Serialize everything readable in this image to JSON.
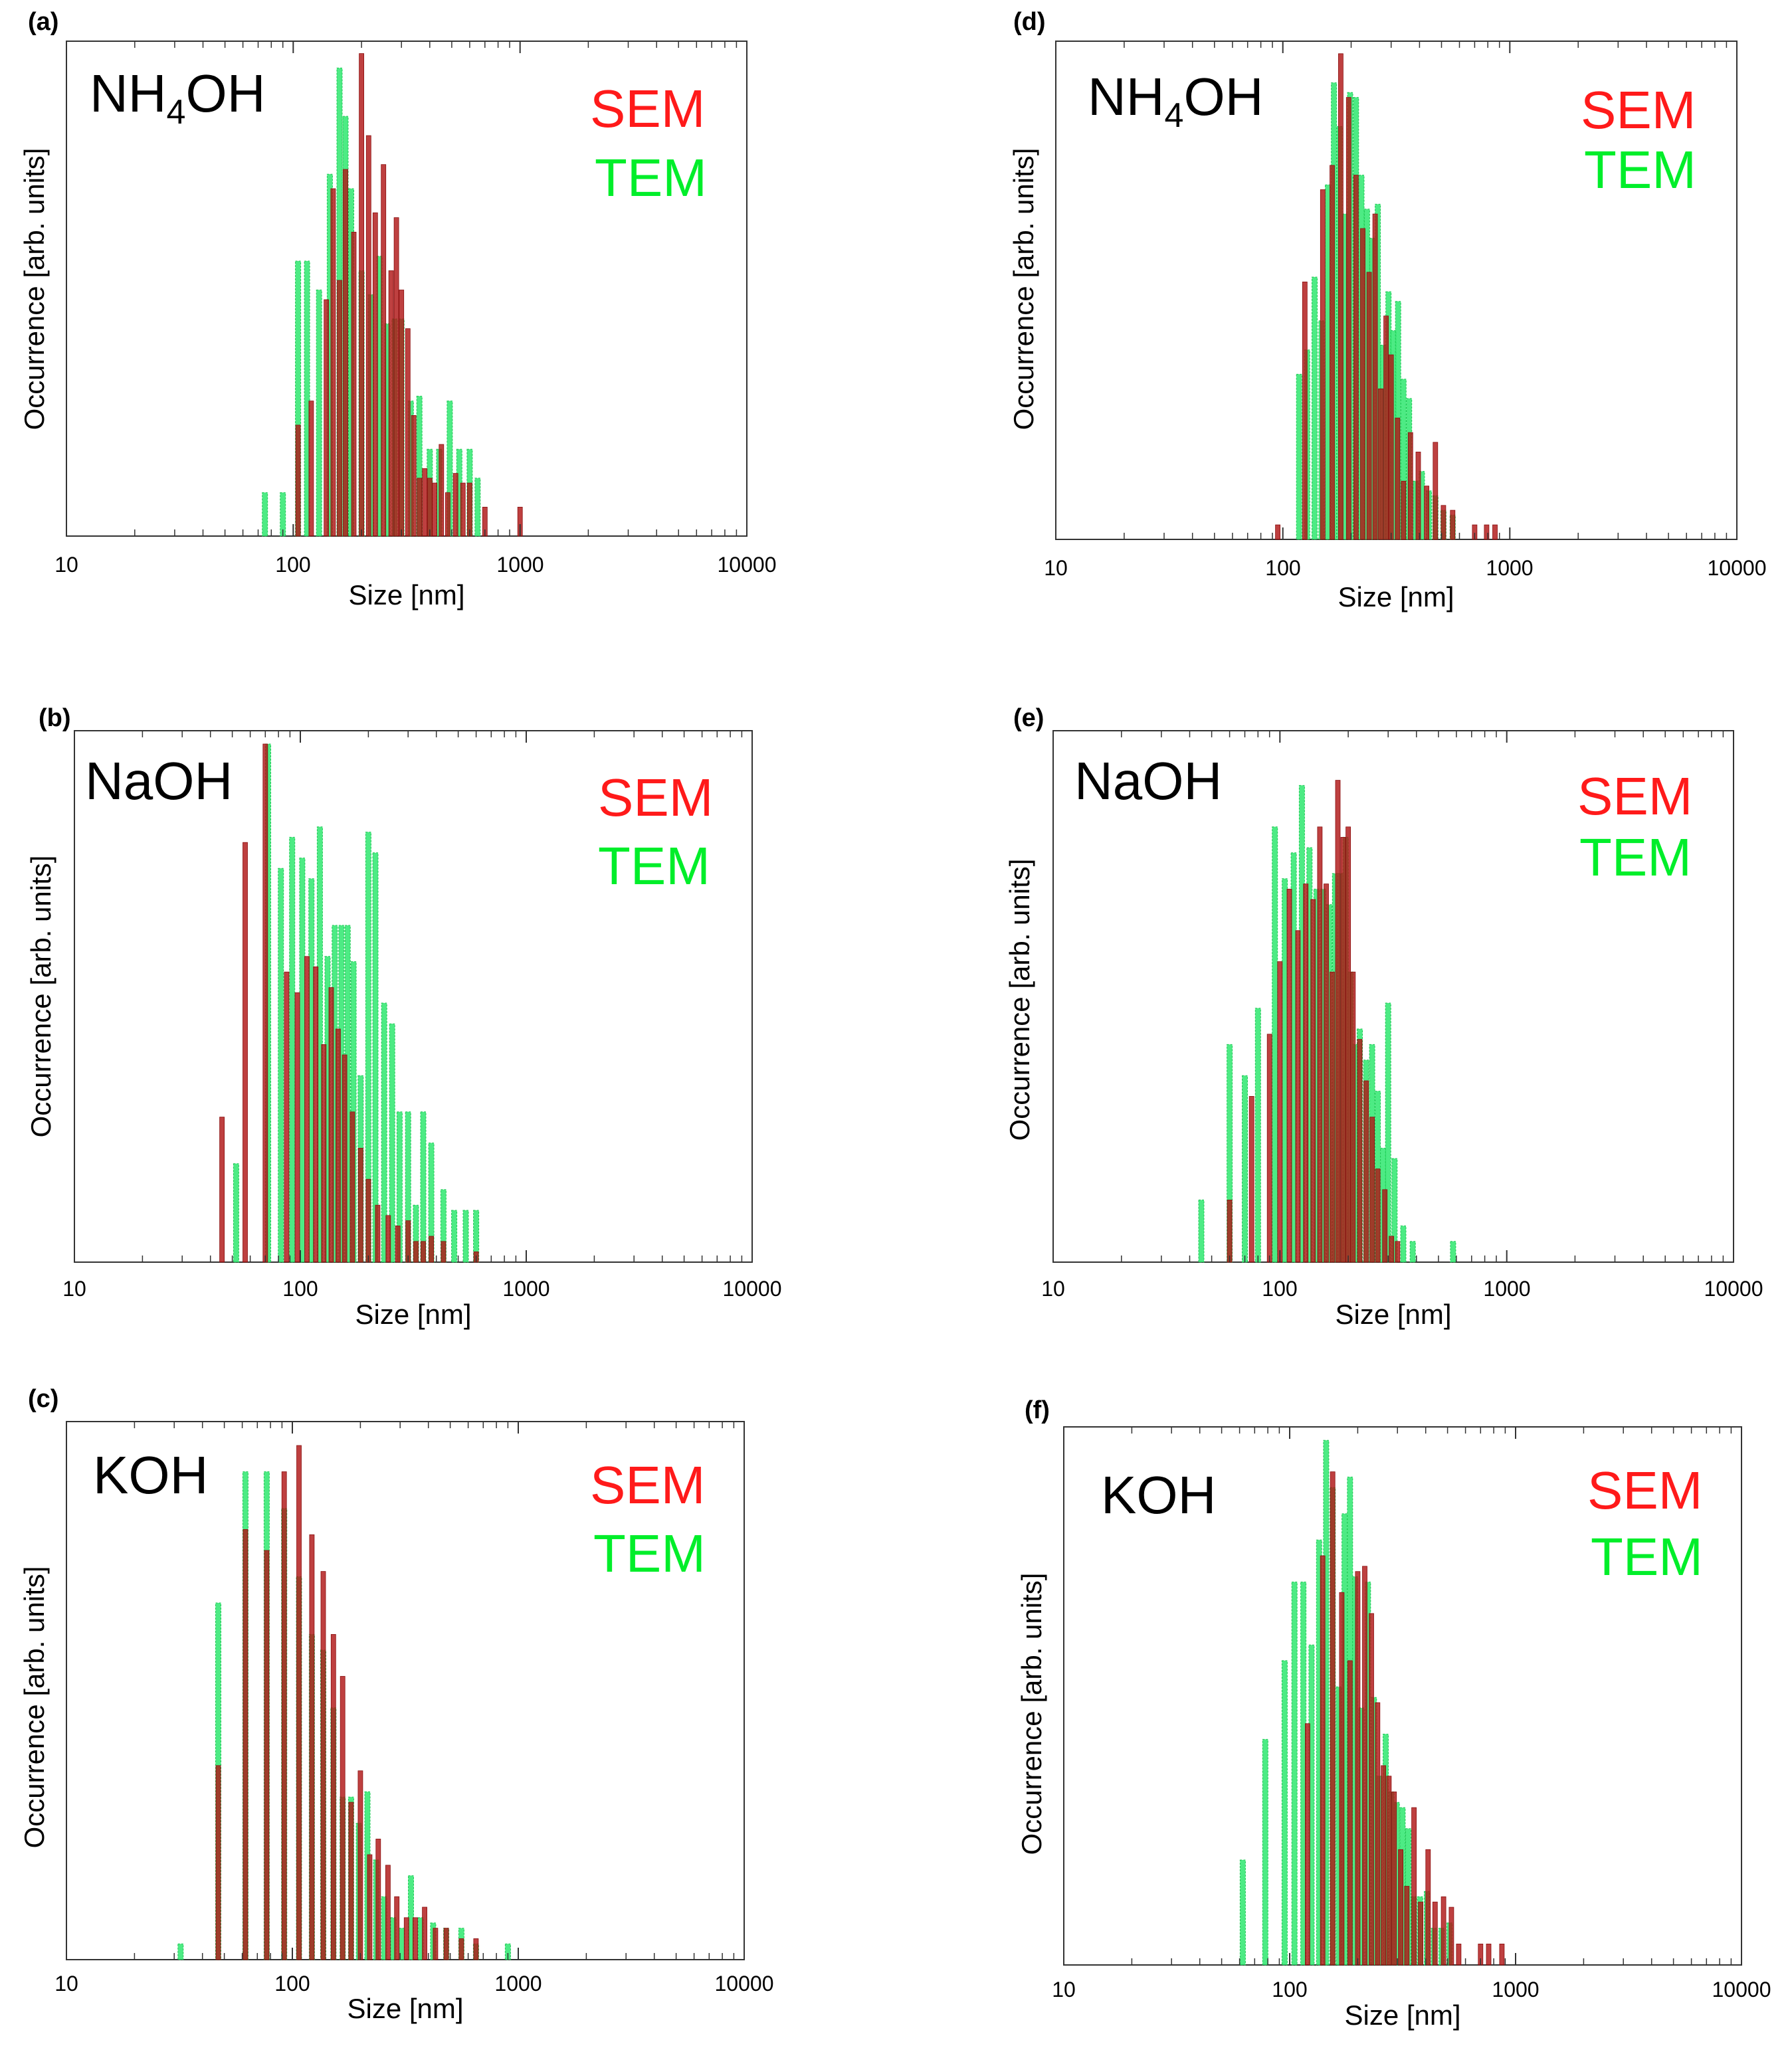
{
  "colors": {
    "sem": "#b01616",
    "tem": "#2ee86e",
    "sem_text": "#ff1a1a",
    "tem_text": "#00ee2a"
  },
  "chart_data": [
    {
      "id": "a",
      "panel_label": "(a)",
      "type": "bar",
      "reagent_main": "NH",
      "reagent_sub": "4",
      "reagent_tail": "OH",
      "legend": [
        "SEM",
        "TEM"
      ],
      "xscale": "log",
      "xlim": [
        10,
        10000
      ],
      "xticks": [
        "10",
        "100",
        "1000",
        "10000"
      ],
      "xlabel": "Size [nm]",
      "ylabel": "Occurrence [arb. units]",
      "ylim": [
        0,
        1.0
      ],
      "series": [
        {
          "name": "TEM",
          "x": [
            75,
            90,
            105,
            115,
            130,
            145,
            160,
            170,
            180,
            200,
            220,
            240,
            260,
            280,
            300,
            330,
            360,
            400,
            440,
            490,
            540,
            600,
            650
          ],
          "values": [
            0.09,
            0.09,
            0.57,
            0.57,
            0.51,
            0.75,
            0.97,
            0.87,
            0.72,
            0.55,
            0.5,
            0.58,
            0.44,
            0.45,
            0.45,
            0.28,
            0.29,
            0.18,
            0.18,
            0.28,
            0.18,
            0.18,
            0.12
          ]
        },
        {
          "name": "SEM",
          "x": [
            105,
            120,
            140,
            150,
            160,
            170,
            185,
            200,
            215,
            230,
            250,
            270,
            285,
            300,
            320,
            340,
            360,
            380,
            400,
            420,
            450,
            480,
            520,
            560,
            600,
            700,
            1000
          ],
          "values": [
            0.23,
            0.28,
            0.49,
            0.72,
            0.53,
            0.76,
            0.63,
            1.0,
            0.83,
            0.67,
            0.77,
            0.55,
            0.66,
            0.51,
            0.43,
            0.25,
            0.12,
            0.14,
            0.12,
            0.11,
            0.19,
            0.09,
            0.13,
            0.11,
            0.11,
            0.06,
            0.06
          ]
        }
      ]
    },
    {
      "id": "b",
      "panel_label": "(b)",
      "type": "bar",
      "reagent_main": "NaOH",
      "reagent_sub": "",
      "reagent_tail": "",
      "legend": [
        "SEM",
        "TEM"
      ],
      "xscale": "log",
      "xlim": [
        10,
        10000
      ],
      "xticks": [
        "10",
        "100",
        "1000",
        "10000"
      ],
      "xlabel": "Size [nm]",
      "ylabel": "Occurrence [arb. units]",
      "ylim": [
        0,
        1.0
      ],
      "series": [
        {
          "name": "TEM",
          "x": [
            52,
            72,
            82,
            92,
            102,
            112,
            122,
            132,
            142,
            152,
            162,
            172,
            185,
            200,
            215,
            235,
            255,
            275,
            300,
            325,
            350,
            380,
            430,
            480,
            540,
            600
          ],
          "values": [
            0.19,
            1.0,
            0.76,
            0.82,
            0.78,
            0.74,
            0.84,
            0.59,
            0.65,
            0.65,
            0.65,
            0.58,
            0.36,
            0.83,
            0.79,
            0.5,
            0.46,
            0.29,
            0.29,
            0.11,
            0.29,
            0.23,
            0.14,
            0.1,
            0.1,
            0.1
          ]
        },
        {
          "name": "SEM",
          "x": [
            45,
            57,
            70,
            87,
            97,
            107,
            117,
            127,
            137,
            147,
            157,
            170,
            185,
            200,
            220,
            245,
            270,
            300,
            325,
            350,
            380,
            430,
            600
          ],
          "values": [
            0.28,
            0.81,
            1.0,
            0.56,
            0.52,
            0.59,
            0.57,
            0.42,
            0.53,
            0.45,
            0.4,
            0.29,
            0.22,
            0.16,
            0.11,
            0.09,
            0.07,
            0.08,
            0.04,
            0.04,
            0.05,
            0.04,
            0.02
          ]
        }
      ]
    },
    {
      "id": "c",
      "panel_label": "(c)",
      "type": "bar",
      "reagent_main": "KOH",
      "reagent_sub": "",
      "reagent_tail": "",
      "legend": [
        "SEM",
        "TEM"
      ],
      "xscale": "log",
      "xlim": [
        10,
        10000
      ],
      "xticks": [
        "10",
        "100",
        "1000",
        "10000"
      ],
      "xlabel": "Size [nm]",
      "ylabel": "Occurrence [arb. units]",
      "ylim": [
        0,
        1.0
      ],
      "series": [
        {
          "name": "TEM",
          "x": [
            32,
            47,
            62,
            77,
            92,
            107,
            122,
            137,
            152,
            167,
            182,
            197,
            215,
            235,
            255,
            280,
            305,
            335,
            370,
            420,
            480,
            560,
            650,
            900
          ],
          "values": [
            0.03,
            0.68,
            0.93,
            0.93,
            0.86,
            0.73,
            0.62,
            0.59,
            0.48,
            0.31,
            0.31,
            0.26,
            0.32,
            0.19,
            0.12,
            0.08,
            0.06,
            0.16,
            0.08,
            0.07,
            0.06,
            0.06,
            0.03,
            0.03
          ]
        },
        {
          "name": "SEM",
          "x": [
            47,
            62,
            77,
            92,
            107,
            122,
            137,
            152,
            167,
            182,
            200,
            220,
            240,
            265,
            290,
            320,
            350,
            385,
            430,
            480,
            560,
            650
          ],
          "values": [
            0.37,
            0.82,
            0.78,
            0.93,
            0.98,
            0.81,
            0.74,
            0.62,
            0.54,
            0.3,
            0.36,
            0.2,
            0.23,
            0.18,
            0.12,
            0.08,
            0.08,
            0.1,
            0.06,
            0.06,
            0.04,
            0.04
          ]
        }
      ]
    },
    {
      "id": "d",
      "panel_label": "(d)",
      "type": "bar",
      "reagent_main": "NH",
      "reagent_sub": "4",
      "reagent_tail": "OH",
      "legend": [
        "SEM",
        "TEM"
      ],
      "xscale": "log",
      "xlim": [
        10,
        10000
      ],
      "xticks": [
        "10",
        "100",
        "1000",
        "10000"
      ],
      "xlabel": "Size [nm]",
      "ylabel": "Occurrence [arb. units]",
      "ylim": [
        0,
        1.0
      ],
      "series": [
        {
          "name": "TEM",
          "x": [
            118,
            128,
            138,
            148,
            158,
            168,
            178,
            188,
            198,
            210,
            222,
            235,
            248,
            262,
            277,
            292,
            307,
            322,
            340,
            360,
            385,
            410,
            440,
            470,
            510,
            560
          ],
          "values": [
            0.34,
            0.39,
            0.54,
            0.45,
            0.73,
            0.94,
            0.85,
            0.67,
            0.92,
            0.91,
            0.75,
            0.68,
            0.62,
            0.69,
            0.4,
            0.51,
            0.43,
            0.49,
            0.33,
            0.29,
            0.12,
            0.14,
            0.1,
            0.09,
            0.06,
            0.05
          ]
        },
        {
          "name": "SEM",
          "x": [
            95,
            125,
            150,
            165,
            180,
            195,
            210,
            225,
            240,
            255,
            270,
            285,
            300,
            320,
            340,
            365,
            395,
            430,
            470,
            510,
            560,
            700,
            790,
            860
          ],
          "values": [
            0.03,
            0.53,
            0.72,
            0.77,
            1.0,
            0.91,
            0.75,
            0.64,
            0.55,
            0.67,
            0.31,
            0.46,
            0.38,
            0.25,
            0.12,
            0.22,
            0.18,
            0.11,
            0.2,
            0.07,
            0.06,
            0.03,
            0.03,
            0.03
          ]
        }
      ]
    },
    {
      "id": "e",
      "panel_label": "(e)",
      "type": "bar",
      "reagent_main": "NaOH",
      "reagent_sub": "",
      "reagent_tail": "",
      "legend": [
        "SEM",
        "TEM"
      ],
      "xscale": "log",
      "xlim": [
        10,
        10000
      ],
      "xticks": [
        "10",
        "100",
        "1000",
        "10000"
      ],
      "xlabel": "Size [nm]",
      "ylabel": "Occurrence [arb. units]",
      "ylim": [
        0,
        1.0
      ],
      "series": [
        {
          "name": "TEM",
          "x": [
            45,
            60,
            70,
            80,
            95,
            105,
            115,
            125,
            135,
            145,
            155,
            165,
            175,
            185,
            195,
            205,
            215,
            225,
            240,
            255,
            270,
            285,
            300,
            320,
            350,
            385,
            580
          ],
          "values": [
            0.12,
            0.42,
            0.36,
            0.49,
            0.84,
            0.74,
            0.79,
            0.92,
            0.8,
            0.72,
            0.72,
            0.69,
            0.75,
            0.75,
            0.82,
            0.56,
            0.42,
            0.45,
            0.39,
            0.42,
            0.33,
            0.22,
            0.5,
            0.2,
            0.07,
            0.04,
            0.04
          ]
        },
        {
          "name": "SEM",
          "x": [
            60,
            75,
            90,
            100,
            110,
            120,
            130,
            140,
            150,
            160,
            170,
            180,
            190,
            200,
            210,
            225,
            240,
            255,
            270,
            290,
            310,
            330
          ],
          "values": [
            0.12,
            0.32,
            0.44,
            0.58,
            0.72,
            0.64,
            0.73,
            0.7,
            0.84,
            0.73,
            0.56,
            0.93,
            0.82,
            0.84,
            0.56,
            0.43,
            0.35,
            0.28,
            0.18,
            0.14,
            0.05,
            0.04
          ]
        }
      ]
    },
    {
      "id": "f",
      "panel_label": "(f)",
      "type": "bar",
      "reagent_main": "KOH",
      "reagent_sub": "",
      "reagent_tail": "",
      "legend": [
        "SEM",
        "TEM"
      ],
      "xscale": "log",
      "xlim": [
        10,
        10000
      ],
      "xticks": [
        "10",
        "100",
        "1000",
        "10000"
      ],
      "xlabel": "Size [nm]",
      "ylabel": "Occurrence [arb. units]",
      "ylim": [
        0,
        1.0
      ],
      "series": [
        {
          "name": "TEM",
          "x": [
            62,
            78,
            95,
            105,
            115,
            125,
            135,
            145,
            155,
            165,
            175,
            185,
            195,
            208,
            222,
            236,
            250,
            266,
            282,
            298,
            316,
            335,
            355,
            378,
            405,
            435,
            470,
            510
          ],
          "values": [
            0.2,
            0.43,
            0.58,
            0.73,
            0.73,
            0.61,
            0.81,
            1.0,
            0.91,
            0.53,
            0.86,
            0.93,
            0.74,
            0.49,
            0.73,
            0.51,
            0.36,
            0.44,
            0.33,
            0.31,
            0.3,
            0.26,
            0.13,
            0.13,
            0.14,
            0.07,
            0.07,
            0.08
          ]
        },
        {
          "name": "SEM",
          "x": [
            120,
            140,
            155,
            170,
            185,
            200,
            215,
            230,
            245,
            260,
            275,
            290,
            310,
            330,
            355,
            380,
            410,
            440,
            480,
            520,
            560,
            700,
            760,
            870
          ],
          "values": [
            0.46,
            0.78,
            0.94,
            0.71,
            0.58,
            0.75,
            0.76,
            0.67,
            0.5,
            0.38,
            0.36,
            0.33,
            0.22,
            0.15,
            0.3,
            0.12,
            0.22,
            0.12,
            0.13,
            0.11,
            0.04,
            0.04,
            0.04,
            0.04
          ]
        }
      ]
    }
  ]
}
